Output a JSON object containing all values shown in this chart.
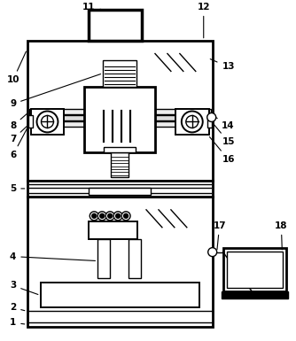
{
  "figure_width": 3.34,
  "figure_height": 3.85,
  "dpi": 100,
  "bg_color": "#ffffff",
  "line_color": "#000000"
}
